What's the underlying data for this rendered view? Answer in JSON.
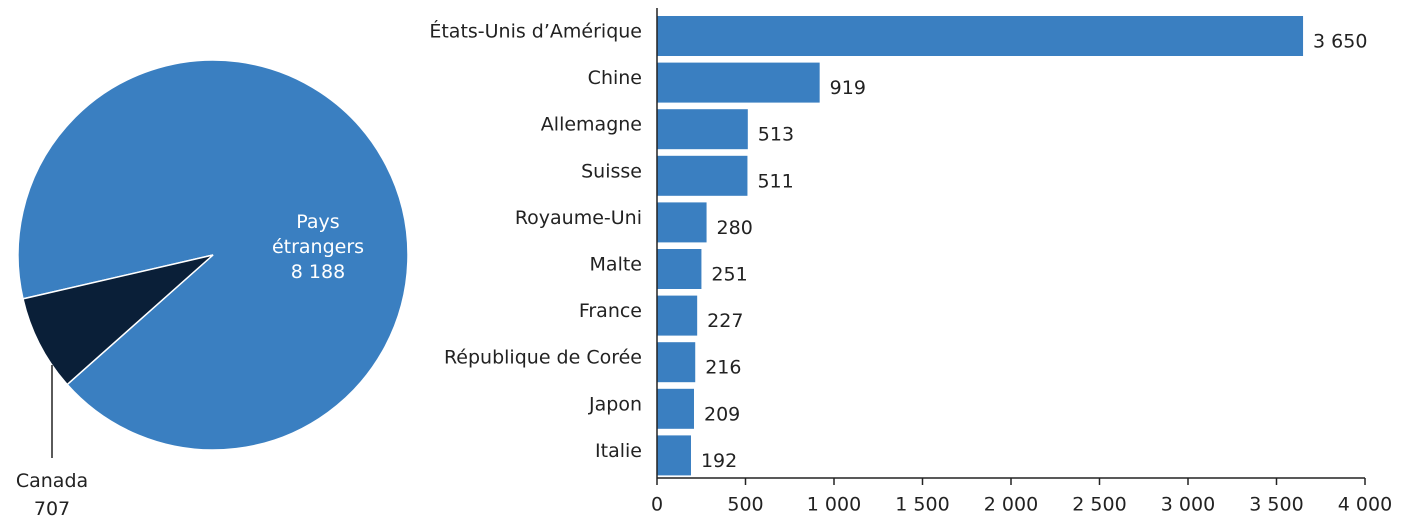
{
  "chart_data": [
    {
      "type": "pie",
      "categories": [
        "Pays étrangers",
        "Canada"
      ],
      "values": [
        8188,
        707
      ],
      "value_labels": [
        "8 188",
        "707"
      ],
      "colors": [
        "#3a7fc1",
        "#0a1f38"
      ]
    },
    {
      "type": "hbar",
      "categories": [
        "États-Unis d’Amérique",
        "Chine",
        "Allemagne",
        "Suisse",
        "Royaume-Uni",
        "Malte",
        "France",
        "République de Corée",
        "Japon",
        "Italie"
      ],
      "values": [
        3650,
        919,
        513,
        511,
        280,
        251,
        227,
        216,
        209,
        192
      ],
      "value_labels": [
        "3 650",
        "919",
        "513",
        "511",
        "280",
        "251",
        "227",
        "216",
        "209",
        "192"
      ],
      "color": "#3a7fc1",
      "xlim": [
        0,
        4000
      ],
      "xticks": [
        0,
        500,
        {
          "value": 1000,
          "label": "1 000"
        },
        {
          "value": 1500,
          "label": "1 500"
        },
        {
          "value": 2000,
          "label": "2 000"
        },
        {
          "value": 2500,
          "label": "2 500"
        },
        {
          "value": 3000,
          "label": "3 000"
        },
        {
          "value": 3500,
          "label": "3 500"
        },
        {
          "value": 4000,
          "label": "4 000"
        }
      ]
    }
  ]
}
